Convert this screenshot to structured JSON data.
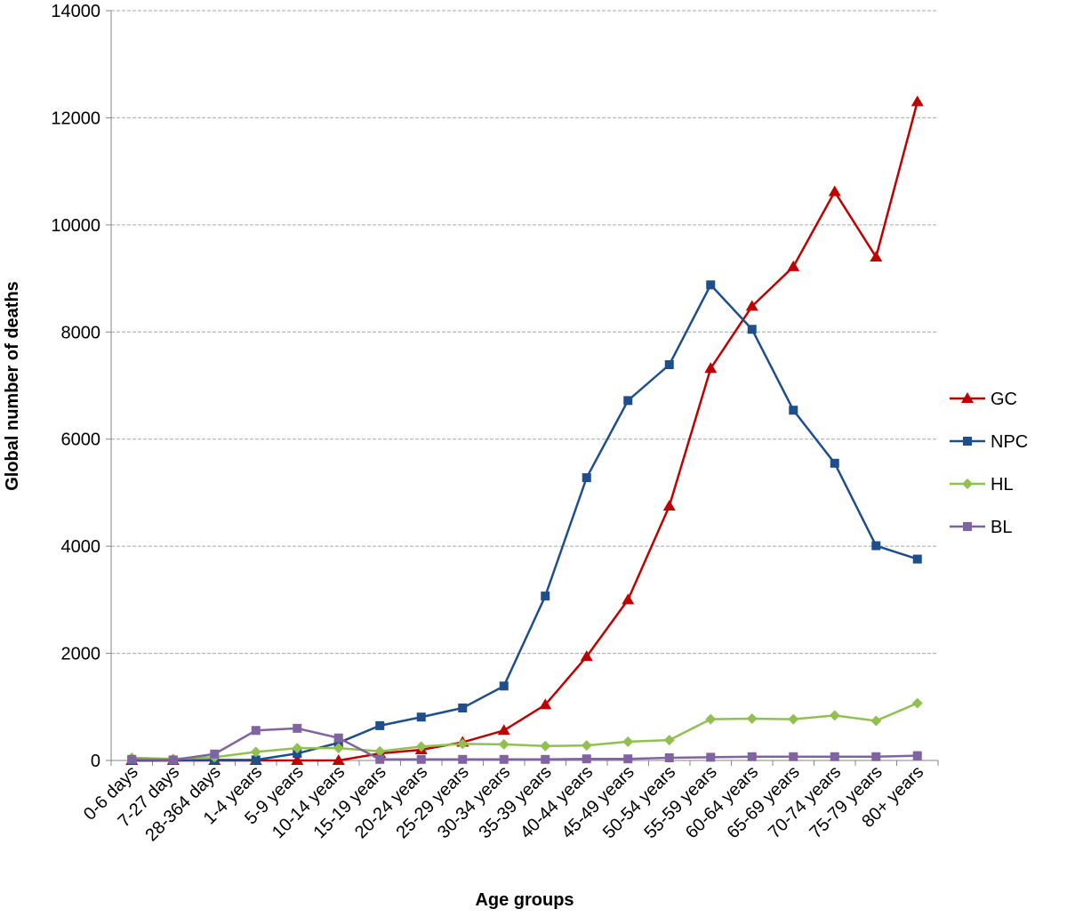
{
  "chart_data": {
    "type": "line",
    "x_label": "Age groups",
    "y_label": "Global number of deaths",
    "categories": [
      "0-6 days",
      "7-27 days",
      "28-364 days",
      "1-4 years",
      "5-9 years",
      "10-14 years",
      "15-19 years",
      "20-24 years",
      "25-29 years",
      "30-34 years",
      "35-39 years",
      "40-44 years",
      "45-49 years",
      "50-54 years",
      "55-59 years",
      "60-64 years",
      "65-69 years",
      "70-74 years",
      "75-79 years",
      "80+ years"
    ],
    "series": [
      {
        "name": "GC",
        "color": "#c00000",
        "marker": "triangle",
        "values": [
          0,
          0,
          0,
          0,
          0,
          0,
          130,
          200,
          340,
          560,
          1040,
          1940,
          3000,
          4750,
          7320,
          8480,
          9220,
          10620,
          9400,
          12300
        ]
      },
      {
        "name": "NPC",
        "color": "#1f4e8c",
        "marker": "square",
        "values": [
          0,
          0,
          10,
          10,
          130,
          330,
          650,
          810,
          980,
          1390,
          3070,
          5280,
          6720,
          7390,
          8880,
          8050,
          6540,
          5550,
          4010,
          3760
        ]
      },
      {
        "name": "HL",
        "color": "#92c050",
        "marker": "diamond",
        "values": [
          50,
          30,
          60,
          160,
          230,
          230,
          170,
          260,
          310,
          300,
          270,
          280,
          350,
          380,
          770,
          780,
          770,
          840,
          740,
          1070
        ]
      },
      {
        "name": "BL",
        "color": "#8064a2",
        "marker": "square",
        "values": [
          20,
          10,
          120,
          560,
          600,
          420,
          20,
          20,
          20,
          20,
          20,
          30,
          30,
          50,
          60,
          70,
          70,
          70,
          70,
          90
        ]
      }
    ],
    "ylim": [
      0,
      14000
    ],
    "yticks": [
      0,
      2000,
      4000,
      6000,
      8000,
      10000,
      12000,
      14000
    ],
    "grid": true,
    "legend": "right"
  }
}
